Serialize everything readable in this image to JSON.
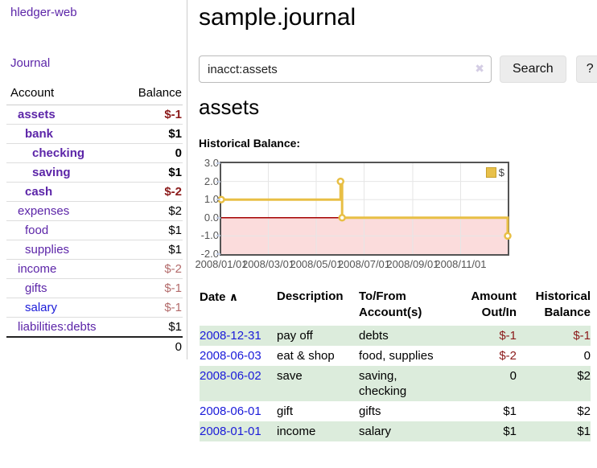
{
  "app": {
    "brand": "hledger-web"
  },
  "sidebar": {
    "journal_label": "Journal",
    "accounts": {
      "header_account": "Account",
      "header_balance": "Balance",
      "rows": [
        {
          "name": "assets",
          "depth": 1,
          "balance": "$-1",
          "bold": true,
          "name_color": "purple",
          "balance_color": "neg-strong"
        },
        {
          "name": "bank",
          "depth": 2,
          "balance": "$1",
          "bold": true,
          "name_color": "purple",
          "balance_color": "pos"
        },
        {
          "name": "checking",
          "depth": 3,
          "balance": "0",
          "bold": true,
          "name_color": "purple",
          "balance_color": "pos"
        },
        {
          "name": "saving",
          "depth": 3,
          "balance": "$1",
          "bold": true,
          "name_color": "purple",
          "balance_color": "pos"
        },
        {
          "name": "cash",
          "depth": 2,
          "balance": "$-2",
          "bold": true,
          "name_color": "purple",
          "balance_color": "neg-strong"
        },
        {
          "name": "expenses",
          "depth": 1,
          "balance": "$2",
          "bold": false,
          "name_color": "purple",
          "balance_color": "pos"
        },
        {
          "name": "food",
          "depth": 2,
          "balance": "$1",
          "bold": false,
          "name_color": "purple",
          "balance_color": "pos"
        },
        {
          "name": "supplies",
          "depth": 2,
          "balance": "$1",
          "bold": false,
          "name_color": "purple",
          "balance_color": "pos"
        },
        {
          "name": "income",
          "depth": 1,
          "balance": "$-2",
          "bold": false,
          "name_color": "purple",
          "balance_color": "neg-soft"
        },
        {
          "name": "gifts",
          "depth": 2,
          "balance": "$-1",
          "bold": false,
          "name_color": "purple",
          "balance_color": "neg-soft"
        },
        {
          "name": "salary",
          "depth": 2,
          "balance": "$-1",
          "bold": false,
          "name_color": "blue",
          "balance_color": "neg-soft"
        },
        {
          "name": "liabilities:debts",
          "depth": 1,
          "balance": "$1",
          "bold": false,
          "name_color": "purple",
          "balance_color": "pos"
        }
      ],
      "total": "0"
    }
  },
  "header": {
    "title": "sample.journal"
  },
  "search": {
    "value": "inacct:assets",
    "clear_icon": "✖",
    "button_label": "Search",
    "help_label": "?"
  },
  "account_page": {
    "heading": "assets"
  },
  "chart_data": {
    "type": "line",
    "title": "Historical Balance:",
    "step": true,
    "x_range": [
      "2008-01-01",
      "2008-12-31"
    ],
    "ylim": [
      -2,
      3
    ],
    "y_ticks": [
      3.0,
      2.0,
      1.0,
      0.0,
      -1.0,
      -2.0
    ],
    "x_ticks": [
      {
        "date": "2008-01-01",
        "label": "2008/01/01"
      },
      {
        "date": "2008-03-01",
        "label": "2008/03/01"
      },
      {
        "date": "2008-05-01",
        "label": "2008/05/01"
      },
      {
        "date": "2008-07-01",
        "label": "2008/07/01"
      },
      {
        "date": "2008-09-01",
        "label": "2008/09/01"
      },
      {
        "date": "2008-11-01",
        "label": "2008/11/01"
      }
    ],
    "series": [
      {
        "name": "$",
        "color": "#e8bf45",
        "points": [
          [
            "2008-01-01",
            1
          ],
          [
            "2008-06-01",
            2
          ],
          [
            "2008-06-03",
            0
          ],
          [
            "2008-12-31",
            -1
          ]
        ]
      }
    ],
    "legend": {
      "label": "$",
      "position": "top-right"
    },
    "zero_line_color": "#a40000",
    "negative_region_color": "#fbdcdc",
    "grid_color": "#e6e6e6"
  },
  "register": {
    "headers": {
      "date": "Date",
      "sort_icon": "∧",
      "description": "Description",
      "accounts": "To/From\nAccount(s)",
      "amount": "Amount\nOut/In",
      "balance": "Historical\nBalance"
    },
    "rows": [
      {
        "date": "2008-12-31",
        "description": "pay off",
        "accounts": "debts",
        "amount": "$-1",
        "amount_negative": true,
        "balance": "$-1",
        "balance_negative": true
      },
      {
        "date": "2008-06-03",
        "description": "eat & shop",
        "accounts": "food, supplies",
        "amount": "$-2",
        "amount_negative": true,
        "balance": "0",
        "balance_negative": false
      },
      {
        "date": "2008-06-02",
        "description": "save",
        "accounts": "saving,\nchecking",
        "amount": "0",
        "amount_negative": false,
        "balance": "$2",
        "balance_negative": false
      },
      {
        "date": "2008-06-01",
        "description": "gift",
        "accounts": "gifts",
        "amount": "$1",
        "amount_negative": false,
        "balance": "$2",
        "balance_negative": false
      },
      {
        "date": "2008-01-01",
        "description": "income",
        "accounts": "salary",
        "amount": "$1",
        "amount_negative": false,
        "balance": "$1",
        "balance_negative": false
      }
    ]
  }
}
